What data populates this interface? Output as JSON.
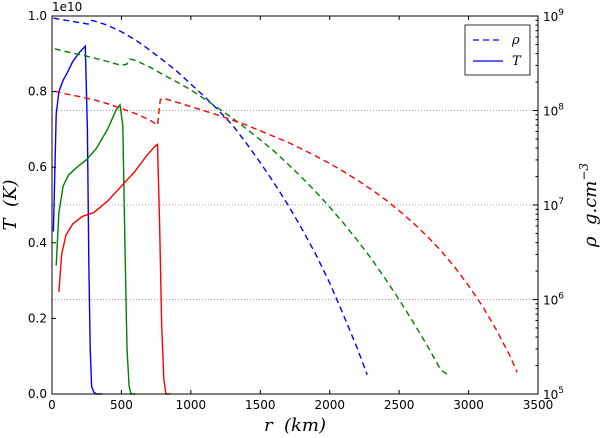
{
  "chart_data": {
    "type": "line",
    "offset_text": "1e10",
    "xlabel": "r  (km)",
    "ylabel_left": "T  (K)",
    "ylabel_right": "ρ  g.cm",
    "ylabel_right_exp": "−3",
    "xlim": [
      0,
      3500
    ],
    "ylim_left": [
      0.0,
      1.0
    ],
    "ylim_right": [
      100000,
      1000000000
    ],
    "right_scale": "log",
    "x_ticks": [
      0,
      500,
      1000,
      1500,
      2000,
      2500,
      3000,
      3500
    ],
    "y_ticks_left": [
      0.0,
      0.2,
      0.4,
      0.6,
      0.8,
      1.0
    ],
    "y_ticks_left_labels": [
      "0.0",
      "0.2",
      "0.4",
      "0.6",
      "0.8",
      "1.0"
    ],
    "y_ticks_right": [
      {
        "value": 100000,
        "base": "10",
        "exp": "5"
      },
      {
        "value": 1000000,
        "base": "10",
        "exp": "6"
      },
      {
        "value": 10000000,
        "base": "10",
        "exp": "7"
      },
      {
        "value": 100000000,
        "base": "10",
        "exp": "8"
      },
      {
        "value": 1000000000,
        "base": "10",
        "exp": "9"
      }
    ],
    "grid_right_values": [
      1000000,
      10000000,
      100000000
    ],
    "legend": {
      "position": "top-right",
      "entries": [
        {
          "label": "ρ",
          "style": "dashed"
        },
        {
          "label": "T",
          "style": "solid"
        }
      ]
    },
    "colors": {
      "blue": "#0000ff",
      "green": "#008000",
      "red": "#ff0000",
      "grid": "#808080"
    },
    "series": [
      {
        "name": "T (blue)",
        "quantity": "T",
        "axis": "left",
        "style": "solid",
        "color": "#0000ff",
        "x": [
          10,
          30,
          50,
          80,
          110,
          150,
          200,
          240,
          255,
          265,
          275,
          285,
          300,
          320,
          360
        ],
        "y": [
          0.43,
          0.74,
          0.8,
          0.83,
          0.85,
          0.88,
          0.905,
          0.92,
          0.7,
          0.35,
          0.12,
          0.02,
          0.005,
          0.0,
          0.0
        ]
      },
      {
        "name": "T (green)",
        "quantity": "T",
        "axis": "left",
        "style": "solid",
        "color": "#008000",
        "x": [
          30,
          50,
          80,
          120,
          180,
          250,
          320,
          400,
          460,
          490,
          510,
          525,
          540,
          555,
          570,
          600
        ],
        "y": [
          0.34,
          0.48,
          0.55,
          0.58,
          0.6,
          0.62,
          0.65,
          0.7,
          0.75,
          0.765,
          0.71,
          0.4,
          0.12,
          0.02,
          0.0,
          0.0
        ]
      },
      {
        "name": "T (red)",
        "quantity": "T",
        "axis": "left",
        "style": "solid",
        "color": "#ff0000",
        "x": [
          50,
          70,
          100,
          150,
          220,
          300,
          400,
          500,
          600,
          680,
          740,
          760,
          775,
          790,
          805,
          820,
          850
        ],
        "y": [
          0.27,
          0.37,
          0.42,
          0.45,
          0.47,
          0.48,
          0.51,
          0.55,
          0.59,
          0.63,
          0.655,
          0.66,
          0.45,
          0.18,
          0.04,
          0.0,
          0.0
        ]
      },
      {
        "name": "rho (blue)",
        "quantity": "ρ",
        "axis": "right",
        "style": "dashed",
        "color": "#0000ff",
        "x": [
          10,
          100,
          200,
          260,
          280,
          300,
          400,
          500,
          600,
          700,
          800,
          900,
          1000,
          1100,
          1200,
          1300,
          1400,
          1500,
          1600,
          1700,
          1800,
          1900,
          2000,
          2100,
          2200,
          2270
        ],
        "y": [
          950000000,
          900000000,
          850000000,
          820000000,
          900000000,
          890000000,
          800000000,
          680000000,
          560000000,
          440000000,
          340000000,
          260000000,
          190000000,
          140000000,
          100000000,
          70000000,
          45000000,
          28000000,
          17000000,
          10000000,
          5600000,
          3000000,
          1500000,
          680000,
          300000,
          160000
        ]
      },
      {
        "name": "rho (green)",
        "quantity": "ρ",
        "axis": "right",
        "style": "dashed",
        "color": "#008000",
        "x": [
          20,
          100,
          200,
          300,
          400,
          500,
          540,
          560,
          600,
          700,
          800,
          900,
          1000,
          1100,
          1200,
          1300,
          1400,
          1500,
          1600,
          1700,
          1800,
          1900,
          2000,
          2100,
          2200,
          2300,
          2400,
          2500,
          2600,
          2700,
          2800,
          2850
        ],
        "y": [
          450000000,
          420000000,
          390000000,
          360000000,
          330000000,
          300000000,
          310000000,
          350000000,
          340000000,
          290000000,
          240000000,
          200000000,
          165000000,
          132000000,
          105000000,
          83000000,
          64000000,
          49000000,
          37000000,
          27000000,
          19500000,
          13800000,
          9500000,
          6400000,
          4200000,
          2700000,
          1650000,
          1000000,
          580000,
          330000,
          180000,
          160000
        ]
      },
      {
        "name": "rho (red)",
        "quantity": "ρ",
        "axis": "right",
        "style": "dashed",
        "color": "#ff0000",
        "x": [
          20,
          100,
          200,
          300,
          400,
          500,
          600,
          700,
          760,
          780,
          800,
          900,
          1000,
          1100,
          1200,
          1300,
          1400,
          1500,
          1600,
          1700,
          1800,
          1900,
          2000,
          2100,
          2200,
          2300,
          2400,
          2500,
          2600,
          2700,
          2800,
          2900,
          3000,
          3100,
          3200,
          3300,
          3350
        ],
        "y": [
          160000000,
          150000000,
          140000000,
          130000000,
          118000000,
          105000000,
          93000000,
          80000000,
          70000000,
          130000000,
          135000000,
          122000000,
          110000000,
          99000000,
          89000000,
          79000000,
          70000000,
          61000000,
          53000000,
          46000000,
          39000000,
          33000000,
          27500000,
          22600000,
          18300000,
          14600000,
          11400000,
          8700000,
          6500000,
          4700000,
          3300000,
          2200000,
          1400000,
          850000,
          480000,
          250000,
          170000
        ]
      }
    ]
  }
}
